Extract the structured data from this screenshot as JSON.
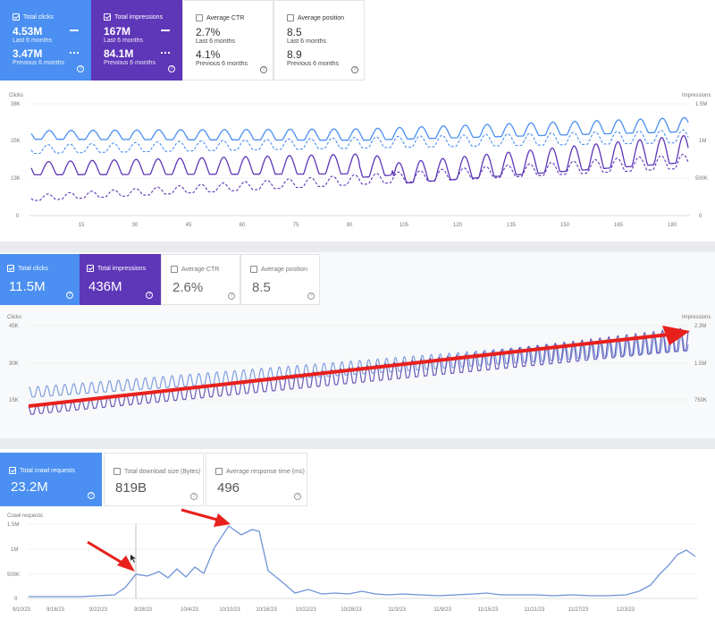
{
  "panel1": {
    "cards": [
      {
        "label": "Total clicks",
        "value": "4.53M",
        "period": "Last 6 months",
        "prev_value": "3.47M",
        "prev_period": "Previous 6 months",
        "checked": true
      },
      {
        "label": "Total impressions",
        "value": "167M",
        "period": "Last 6 months",
        "prev_value": "84.1M",
        "prev_period": "Previous 6 months",
        "checked": true
      },
      {
        "label": "Average CTR",
        "value": "2.7%",
        "period": "Last 6 months",
        "prev_value": "4.1%",
        "prev_period": "Previous 6 months",
        "checked": false
      },
      {
        "label": "Average position",
        "value": "8.5",
        "period": "Last 6 months",
        "prev_value": "8.9",
        "prev_period": "Previous 6 months",
        "checked": false
      }
    ],
    "chart": {
      "left_axis_title": "Clicks",
      "right_axis_title": "Impressions",
      "left_ticks": [
        "38K",
        "25K",
        "13K",
        "0"
      ],
      "right_ticks": [
        "1.5M",
        "1M",
        "500K",
        "0"
      ],
      "x_ticks": [
        "15",
        "30",
        "45",
        "60",
        "75",
        "90",
        "105",
        "120",
        "135",
        "150",
        "165",
        "180"
      ]
    }
  },
  "panel2": {
    "cards": [
      {
        "label": "Total clicks",
        "value": "11.5M",
        "checked": true
      },
      {
        "label": "Total impressions",
        "value": "436M",
        "checked": true
      },
      {
        "label": "Average CTR",
        "value": "2.6%",
        "checked": false
      },
      {
        "label": "Average position",
        "value": "8.5",
        "checked": false
      }
    ],
    "chart": {
      "left_axis_title": "Clicks",
      "right_axis_title": "Impressions",
      "left_ticks": [
        "45K",
        "30K",
        "15K"
      ],
      "right_ticks": [
        "2.3M",
        "1.5M",
        "750K"
      ]
    }
  },
  "panel3": {
    "cards": [
      {
        "label": "Total crawl requests",
        "value": "23.2M",
        "checked": true
      },
      {
        "label": "Total download size (Bytes)",
        "value": "819B",
        "checked": false
      },
      {
        "label": "Average response time (ms)",
        "value": "496",
        "checked": false
      }
    ],
    "chart": {
      "left_axis_title": "Crawl requests",
      "left_ticks": [
        "1.5M",
        "1M",
        "500K",
        "0"
      ],
      "x_ticks": [
        "9/10/23",
        "9/16/23",
        "9/22/23",
        "9/28/23",
        "10/4/23",
        "10/10/23",
        "10/16/23",
        "10/22/23",
        "10/28/23",
        "11/3/23",
        "11/9/23",
        "11/15/23",
        "11/21/23",
        "11/27/23",
        "12/3/23"
      ]
    }
  },
  "colors": {
    "clicks": "#4a8ff1",
    "impressions": "#5e36b8",
    "annotation": "#e8201c"
  }
}
